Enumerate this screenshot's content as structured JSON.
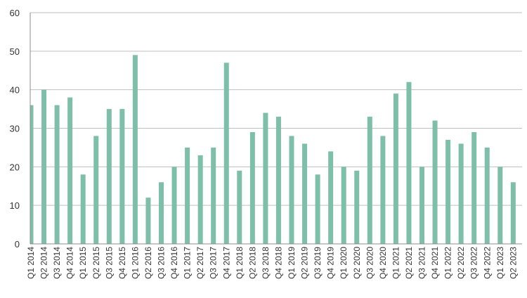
{
  "chart_data": {
    "type": "bar",
    "title": "",
    "xlabel": "",
    "ylabel": "",
    "ylim": [
      0,
      60
    ],
    "yticks": [
      0,
      10,
      20,
      30,
      40,
      50,
      60
    ],
    "grid": "horizontal",
    "legend": "none",
    "bar_color": "#7dbfa9",
    "categories": [
      "Q1 2014",
      "Q2 2014",
      "Q3 2014",
      "Q4 2014",
      "Q1 2015",
      "Q2 2015",
      "Q3 2015",
      "Q4 2015",
      "Q1 2016",
      "Q2 2016",
      "Q3 2016",
      "Q4 2016",
      "Q1 2017",
      "Q2 2017",
      "Q3 2017",
      "Q4 2017",
      "Q1 2018",
      "Q2 2018",
      "Q3 2018",
      "Q4 2018",
      "Q1 2019",
      "Q2 2019",
      "Q3 2019",
      "Q4 2019",
      "Q1 2020",
      "Q2 2020",
      "Q3 2020",
      "Q4 2020",
      "Q1 2021",
      "Q2 2021",
      "Q3 2021",
      "Q4 2021",
      "Q1 2022",
      "Q2 2022",
      "Q3 2022",
      "Q4 2022",
      "Q1 2023",
      "Q2 2023"
    ],
    "values": [
      36,
      40,
      36,
      38,
      18,
      28,
      35,
      35,
      49,
      12,
      16,
      20,
      25,
      23,
      25,
      47,
      19,
      29,
      34,
      33,
      28,
      26,
      18,
      24,
      20,
      19,
      33,
      28,
      39,
      42,
      20,
      32,
      27,
      26,
      29,
      25,
      20,
      16
    ]
  }
}
